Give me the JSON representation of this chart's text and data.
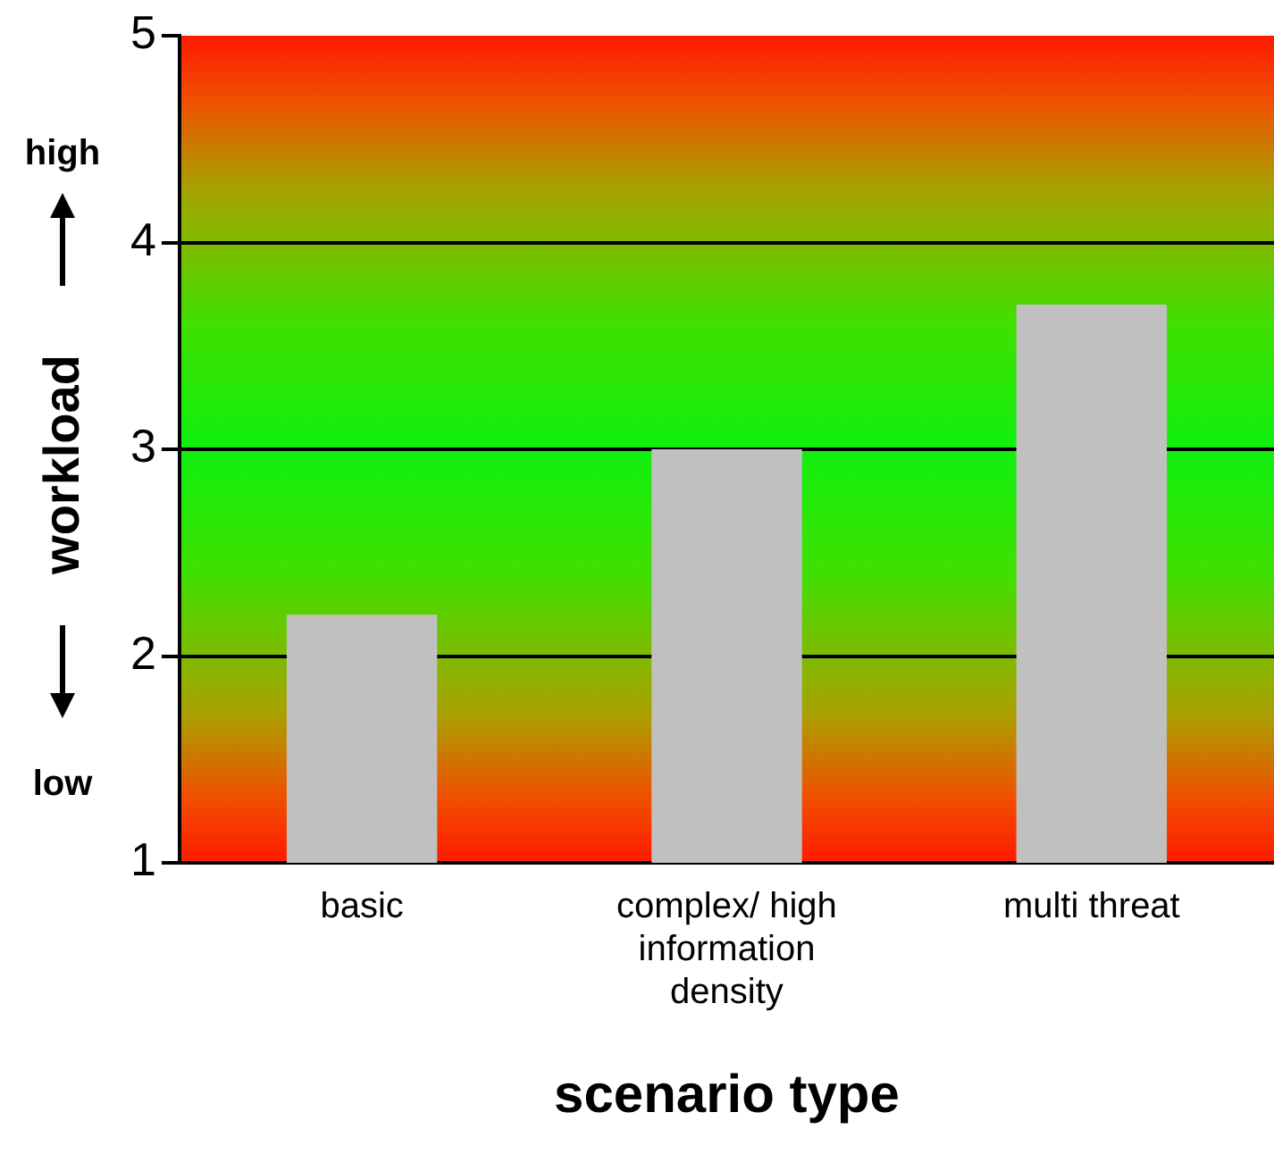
{
  "chart_data": {
    "type": "bar",
    "categories": [
      "basic",
      "complex/ high information density",
      "multi threat"
    ],
    "values": [
      2.2,
      3.0,
      3.7
    ],
    "color": "#c0c0c0",
    "ylim": [
      1,
      5
    ],
    "yticks": [
      1,
      2,
      3,
      4,
      5
    ],
    "grid": "y",
    "ylabel": "workload",
    "xlabel": "scenario type",
    "annotations": [
      "high",
      "low"
    ]
  }
}
